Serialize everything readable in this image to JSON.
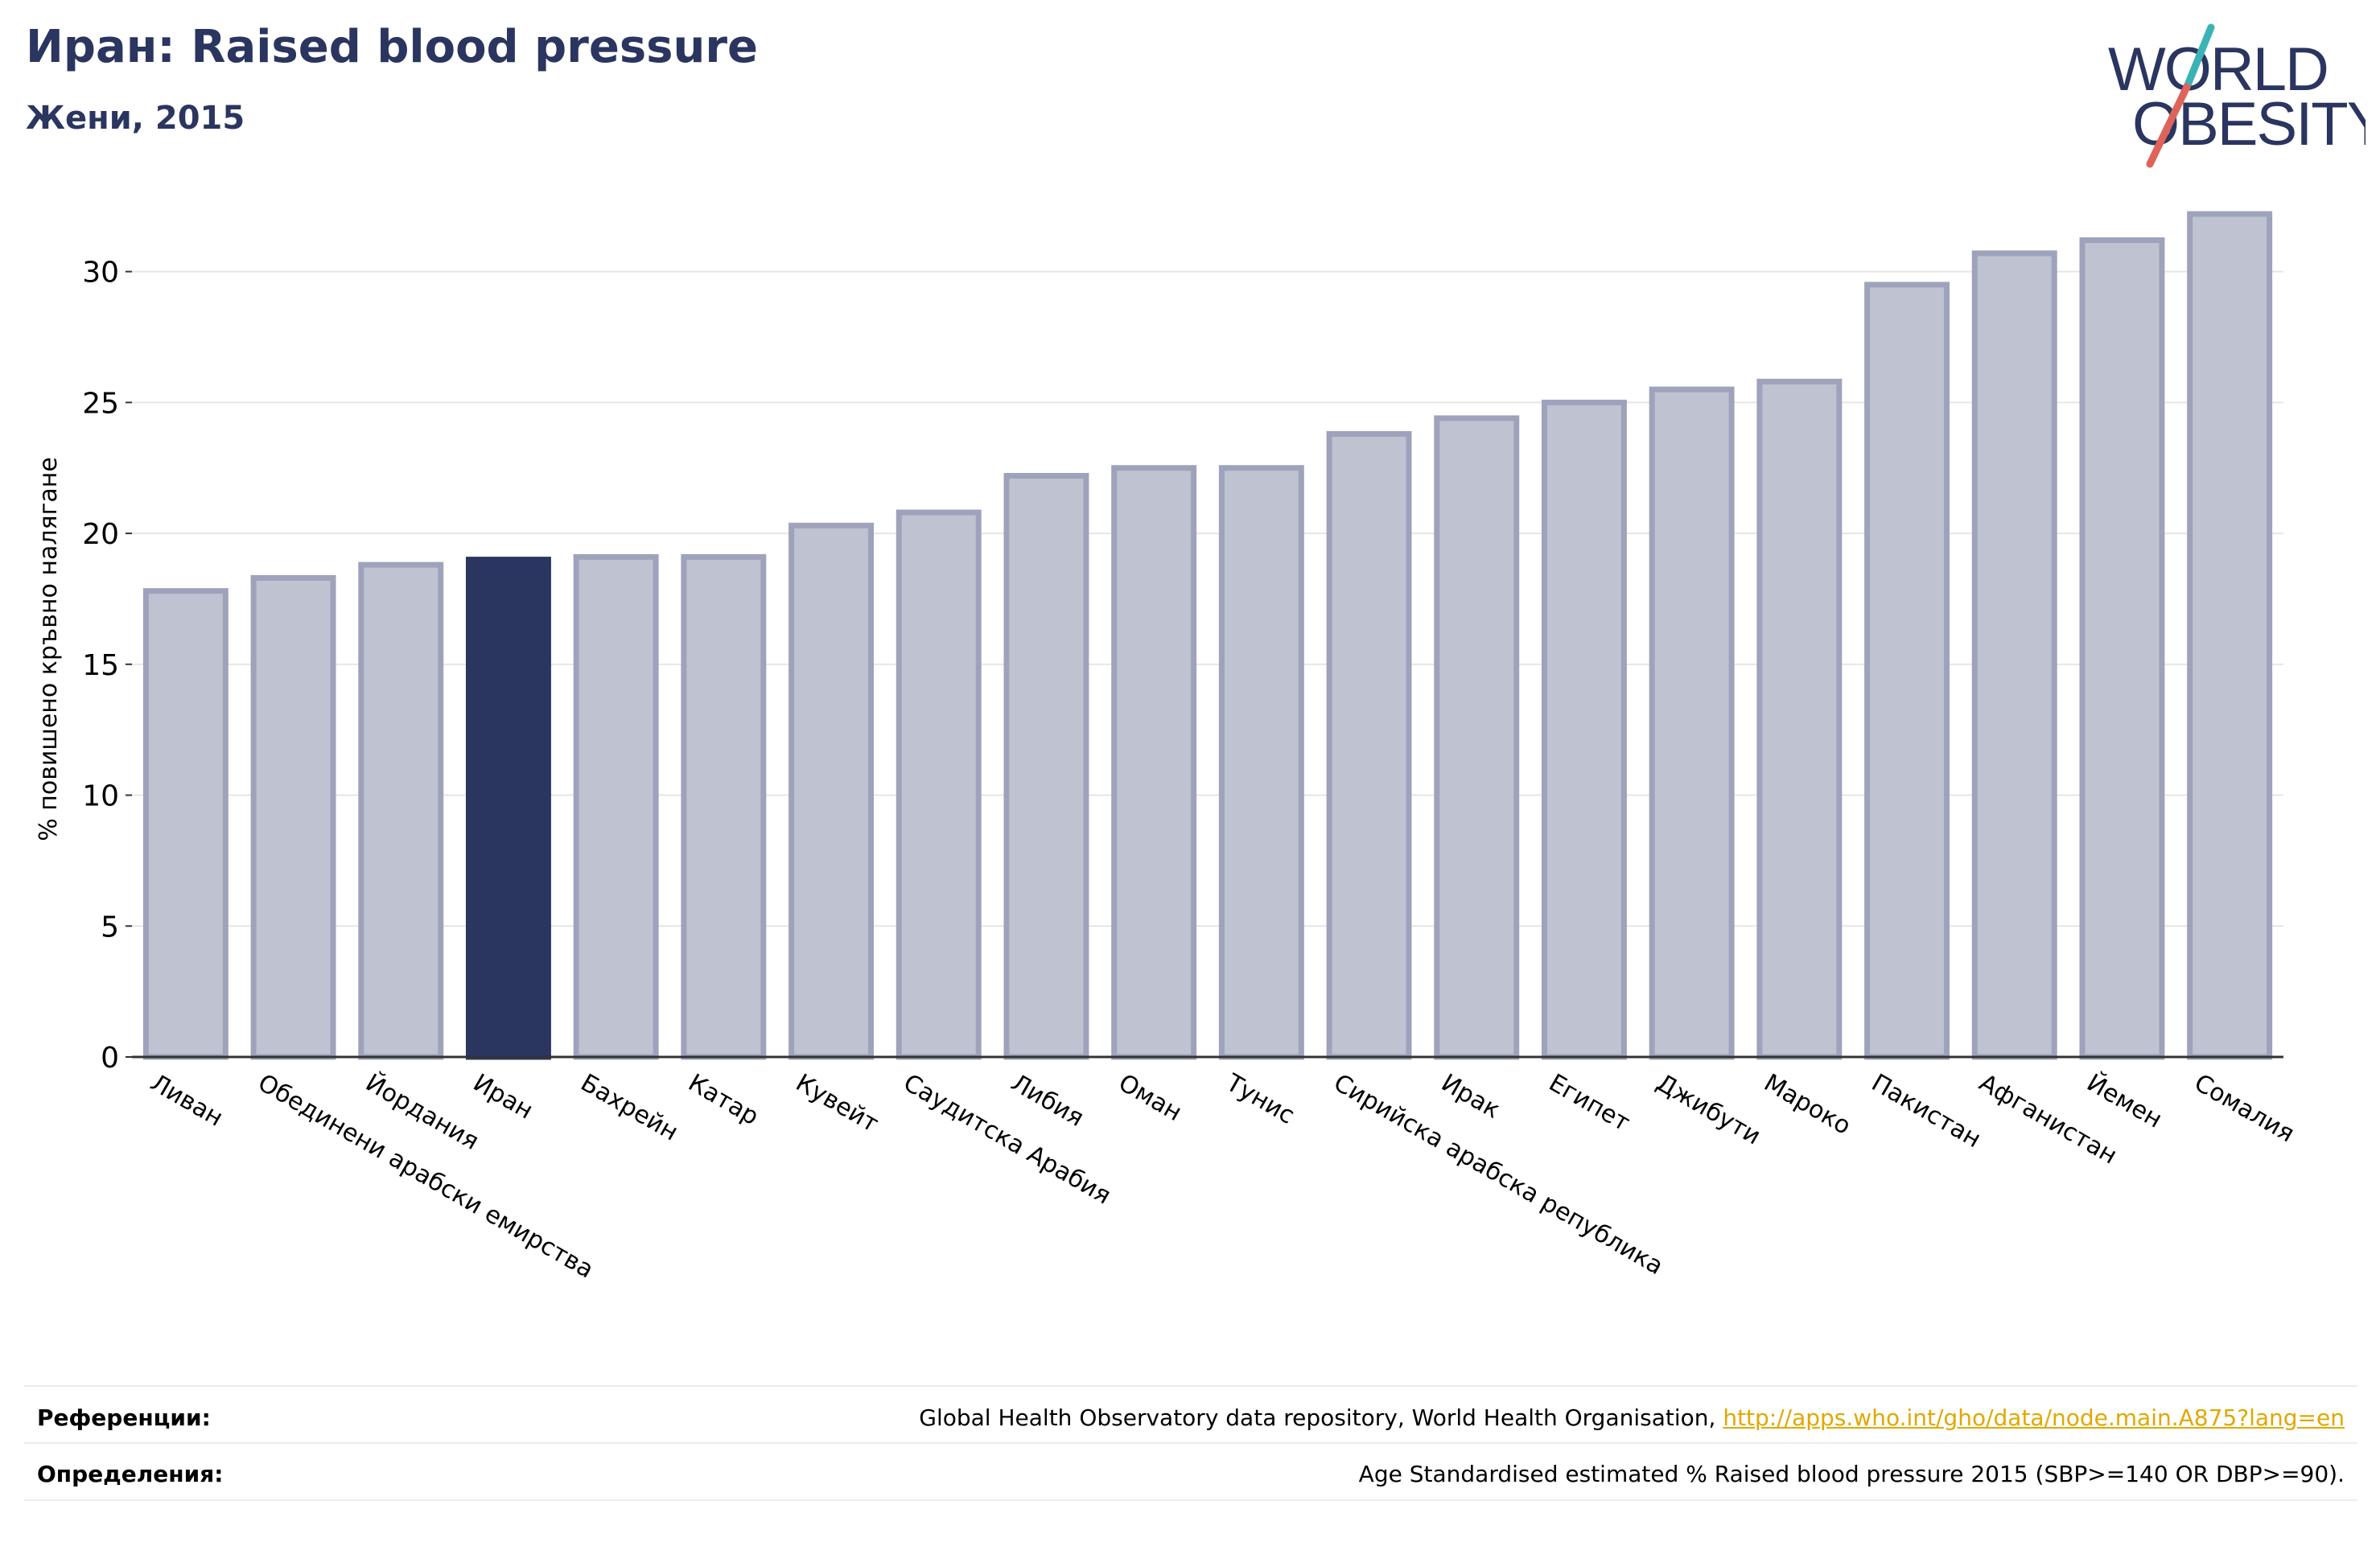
{
  "header": {
    "title": "Иран: Raised blood pressure",
    "subtitle": "Жени, 2015"
  },
  "logo": {
    "line1": "WORLD",
    "line2": "OBESITY",
    "colors": {
      "text": "#2a3560",
      "slash_teal": "#3bb3b5",
      "slash_red": "#e0635a"
    }
  },
  "chart_data": {
    "type": "bar",
    "ylabel": "% повишено кръвно налягане",
    "xlabel": "",
    "ylim": [
      0,
      33
    ],
    "yticks": [
      0,
      5,
      10,
      15,
      20,
      25,
      30
    ],
    "grid": true,
    "categories": [
      "Ливан",
      "Обединени арабски емирства",
      "Йордания",
      "Иран",
      "Бахрейн",
      "Катар",
      "Кувейт",
      "Саудитска Арабия",
      "Либия",
      "Оман",
      "Тунис",
      "Сирийска арабска република",
      "Ирак",
      "Египет",
      "Джибути",
      "Мароко",
      "Пакистан",
      "Афганистан",
      "Йемен",
      "Сомалия"
    ],
    "values": [
      17.8,
      18.3,
      18.8,
      19.0,
      19.1,
      19.1,
      20.3,
      20.8,
      22.2,
      22.5,
      22.5,
      23.8,
      24.4,
      25.0,
      25.5,
      25.8,
      29.5,
      30.7,
      31.2,
      32.2
    ],
    "highlight": "Иран",
    "colors": {
      "bar": "#bfc2d1",
      "bar_border": "#9ea3bb",
      "highlight": "#2a3560",
      "grid": "#e6e6e6",
      "axis": "#333333"
    }
  },
  "footer": {
    "references_label": "Референции:",
    "references_text": "Global Health Observatory data repository, World Health Organisation, ",
    "references_link": "http://apps.who.int/gho/data/node.main.A875?lang=en",
    "definitions_label": "Определения:",
    "definitions_text": "Age Standardised estimated % Raised blood pressure 2015 (SBP>=140 OR DBP>=90)."
  }
}
